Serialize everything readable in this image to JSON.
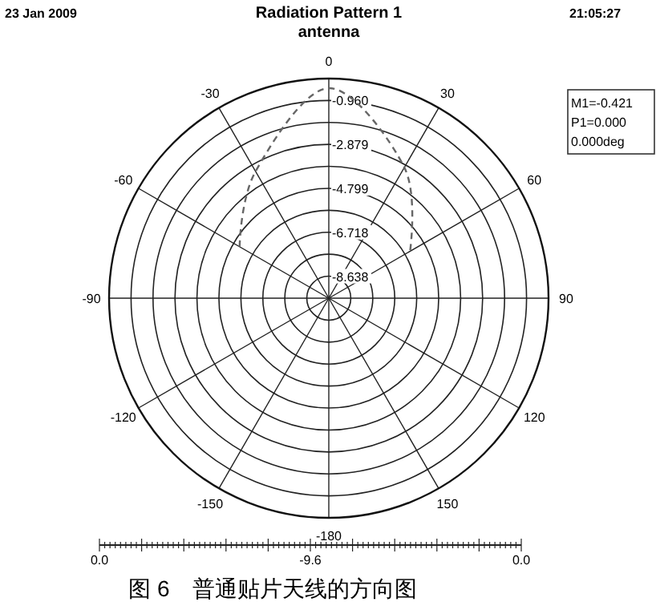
{
  "chart_data": {
    "type": "radar",
    "title": "Radiation Pattern 1",
    "subtitle": "antenna",
    "categories": [
      "0",
      "30",
      "60",
      "90",
      "120",
      "150",
      "-180",
      "-150",
      "-120",
      "-90",
      "-60",
      "-30"
    ],
    "series": [
      {
        "color": "#666666",
        "values": [
          -0.421,
          -3.0,
          -5.5,
          null,
          null,
          null,
          null,
          null,
          null,
          null,
          -5.1,
          -3.2
        ]
      }
    ],
    "ylim": [
      -9.6,
      0
    ],
    "yticks": [
      {
        "value": -8.638,
        "label": "-8.638"
      },
      {
        "value": -6.718,
        "label": "-6.718"
      },
      {
        "value": -4.799,
        "label": "-4.799"
      },
      {
        "value": -2.879,
        "label": "-2.879"
      },
      {
        "value": -0.96,
        "label": "-0.960"
      }
    ],
    "line_style": "dashed",
    "marker": "none",
    "grid": true,
    "annotations": [
      "23 Jan 2009",
      "21:05:27",
      "M1=-0.421",
      "P1=0.000",
      "0.000deg",
      "0.0",
      "-9.6",
      "0.0",
      "图 6　普通贴片天线的方向图"
    ]
  }
}
